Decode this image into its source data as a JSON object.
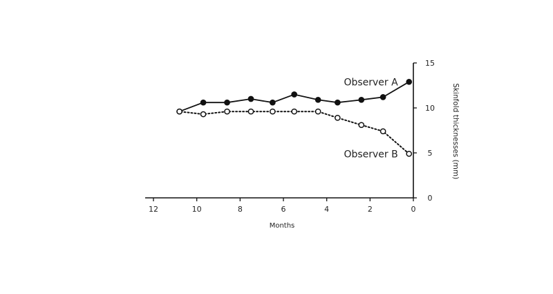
{
  "chart_data": {
    "type": "line",
    "xlabel": "Months",
    "ylabel": "Skinfold thicknesses (mm)",
    "x_ticks": [
      0,
      2,
      4,
      6,
      8,
      10,
      12
    ],
    "y_ticks": [
      0,
      5,
      10,
      15
    ],
    "xlim": [
      0,
      12
    ],
    "ylim": [
      0,
      15
    ],
    "x_reversed": true,
    "grid": false,
    "series": [
      {
        "name": "Observer A",
        "marker": "filled-circle",
        "line": "solid",
        "x": [
          0.2,
          1.4,
          2.4,
          3.5,
          4.4,
          5.5,
          6.5,
          7.5,
          8.6,
          9.7,
          10.8
        ],
        "y": [
          12.9,
          11.2,
          10.9,
          10.6,
          10.9,
          11.5,
          10.6,
          11.0,
          10.6,
          10.6,
          9.6
        ]
      },
      {
        "name": "Observer B",
        "marker": "open-circle",
        "line": "dotted",
        "x": [
          0.2,
          1.4,
          2.4,
          3.5,
          4.4,
          5.5,
          6.5,
          7.5,
          8.6,
          9.7,
          10.8
        ],
        "y": [
          4.9,
          7.4,
          8.1,
          8.9,
          9.6,
          9.6,
          9.6,
          9.6,
          9.6,
          9.3,
          9.6
        ]
      }
    ]
  }
}
